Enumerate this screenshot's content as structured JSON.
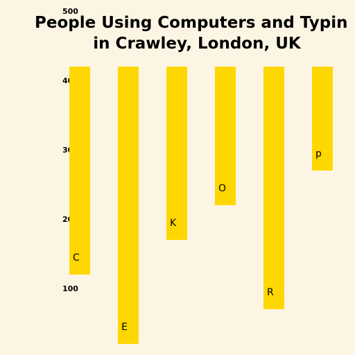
{
  "chart_data": {
    "type": "bar",
    "title_lines": [
      "People Using Computers and Typin",
      "in Crawley, London, UK"
    ],
    "categories": [
      "C",
      "E",
      "K",
      "O",
      "R",
      "p\u0001\u001f\u0001\u0015"
    ],
    "ranges": [
      [
        120,
        420
      ],
      [
        20,
        420
      ],
      [
        170,
        420
      ],
      [
        220,
        420
      ],
      [
        70,
        420
      ],
      [
        270,
        420
      ]
    ],
    "yticks": [
      100,
      200,
      300,
      400,
      500
    ],
    "ylim": [
      20,
      500
    ],
    "grid": false,
    "colors": {
      "background": "#fdf5e4",
      "bar": "#ffd700",
      "text": "#000000"
    }
  }
}
